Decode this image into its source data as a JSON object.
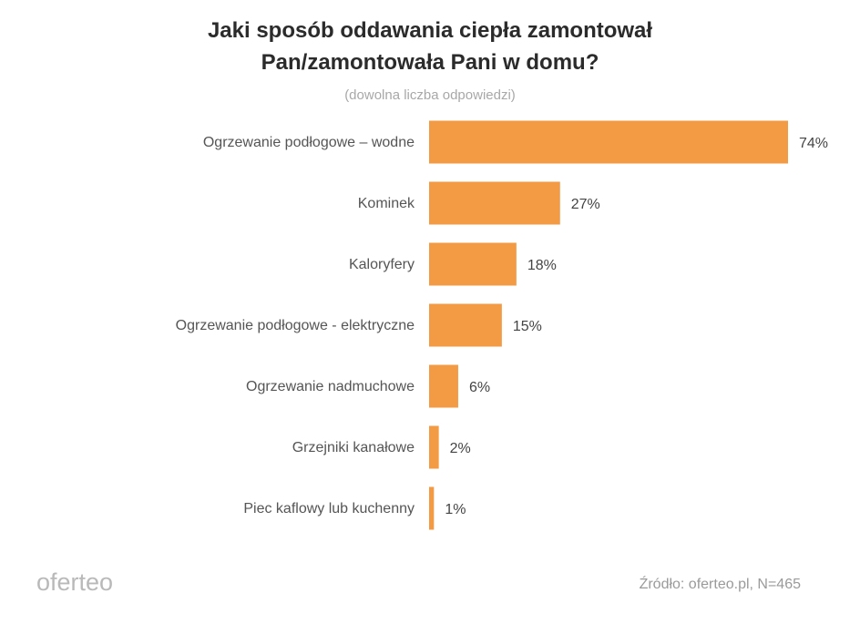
{
  "chart_data": {
    "type": "bar",
    "orientation": "horizontal",
    "title_lines": [
      "Jaki sposób oddawania ciepła zamontował",
      "Pan/zamontowała Pani w domu?"
    ],
    "subtitle": "(dowolna liczba odpowiedzi)",
    "categories": [
      "Ogrzewanie podłogowe – wodne",
      "Kominek",
      "Kaloryfery",
      "Ogrzewanie podłogowe - elektryczne",
      "Ogrzewanie nadmuchowe",
      "Grzejniki kanałowe",
      "Piec kaflowy lub kuchenny"
    ],
    "values": [
      74,
      27,
      18,
      15,
      6,
      2,
      1
    ],
    "value_labels": [
      "74%",
      "27%",
      "18%",
      "15%",
      "6%",
      "2%",
      "1%"
    ],
    "unit": "%",
    "bar_color": "#F39A44",
    "grid": false,
    "legend": "none"
  },
  "branding": {
    "logo_text": "oferteo",
    "source": "Źródło: oferteo.pl, N=465"
  }
}
